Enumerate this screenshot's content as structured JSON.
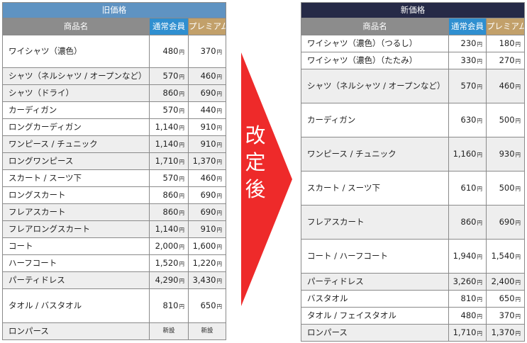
{
  "yen": "円",
  "old": {
    "title": "旧価格",
    "headers": {
      "name": "商品名",
      "regular": "通常会員",
      "premium": "プレミアム"
    },
    "rows": [
      {
        "name": "ワイシャツ（濃色）",
        "regular": "480",
        "premium": "370"
      },
      {
        "name": "シャツ（ネルシャツ / オープンなど）",
        "regular": "570",
        "premium": "460"
      },
      {
        "name": "シャツ（ドライ）",
        "regular": "860",
        "premium": "690"
      },
      {
        "name": "カーディガン",
        "regular": "570",
        "premium": "440"
      },
      {
        "name": "ロングカーディガン",
        "regular": "1,140",
        "premium": "910"
      },
      {
        "name": "ワンピース / チュニック",
        "regular": "1,140",
        "premium": "910"
      },
      {
        "name": "ロングワンピース",
        "regular": "1,710",
        "premium": "1,370"
      },
      {
        "name": "スカート / スーツ下",
        "regular": "570",
        "premium": "460"
      },
      {
        "name": "ロングスカート",
        "regular": "860",
        "premium": "690"
      },
      {
        "name": "フレアスカート",
        "regular": "860",
        "premium": "690"
      },
      {
        "name": "フレアロングスカート",
        "regular": "1,140",
        "premium": "910"
      },
      {
        "name": "コート",
        "regular": "2,000",
        "premium": "1,600"
      },
      {
        "name": "ハーフコート",
        "regular": "1,520",
        "premium": "1,220"
      },
      {
        "name": "パーティドレス",
        "regular": "4,290",
        "premium": "3,430"
      },
      {
        "name": "タオル / バスタオル",
        "regular": "810",
        "premium": "650"
      },
      {
        "name": "ロンパース",
        "regular": "新設",
        "premium": "新設"
      }
    ]
  },
  "arrow": {
    "label_chars": [
      "改",
      "定",
      "後"
    ],
    "color": "#ee2a2a"
  },
  "new": {
    "title": "新価格",
    "headers": {
      "name": "商品名",
      "regular": "通常会員",
      "premium": "プレミアム"
    },
    "rows": [
      {
        "name": "ワイシャツ（濃色）（つるし）",
        "regular": "230",
        "premium": "180"
      },
      {
        "name": "ワイシャツ（濃色）（たたみ）",
        "regular": "330",
        "premium": "270"
      },
      {
        "name": "シャツ（ネルシャツ / オープンなど）",
        "regular": "570",
        "premium": "460"
      },
      {
        "name": "カーディガン",
        "regular": "630",
        "premium": "500"
      },
      {
        "name": "ワンピース / チュニック",
        "regular": "1,160",
        "premium": "930"
      },
      {
        "name": "スカート / スーツ下",
        "regular": "610",
        "premium": "500"
      },
      {
        "name": "フレアスカート",
        "regular": "860",
        "premium": "690"
      },
      {
        "name": "コート / ハーフコート",
        "regular": "1,940",
        "premium": "1,540"
      },
      {
        "name": "パーティドレス",
        "regular": "3,260",
        "premium": "2,400"
      },
      {
        "name": "バスタオル",
        "regular": "810",
        "premium": "650"
      },
      {
        "name": "タオル / フェイスタオル",
        "regular": "480",
        "premium": "370"
      },
      {
        "name": "ロンパース",
        "regular": "1,710",
        "premium": "1,370"
      }
    ]
  }
}
